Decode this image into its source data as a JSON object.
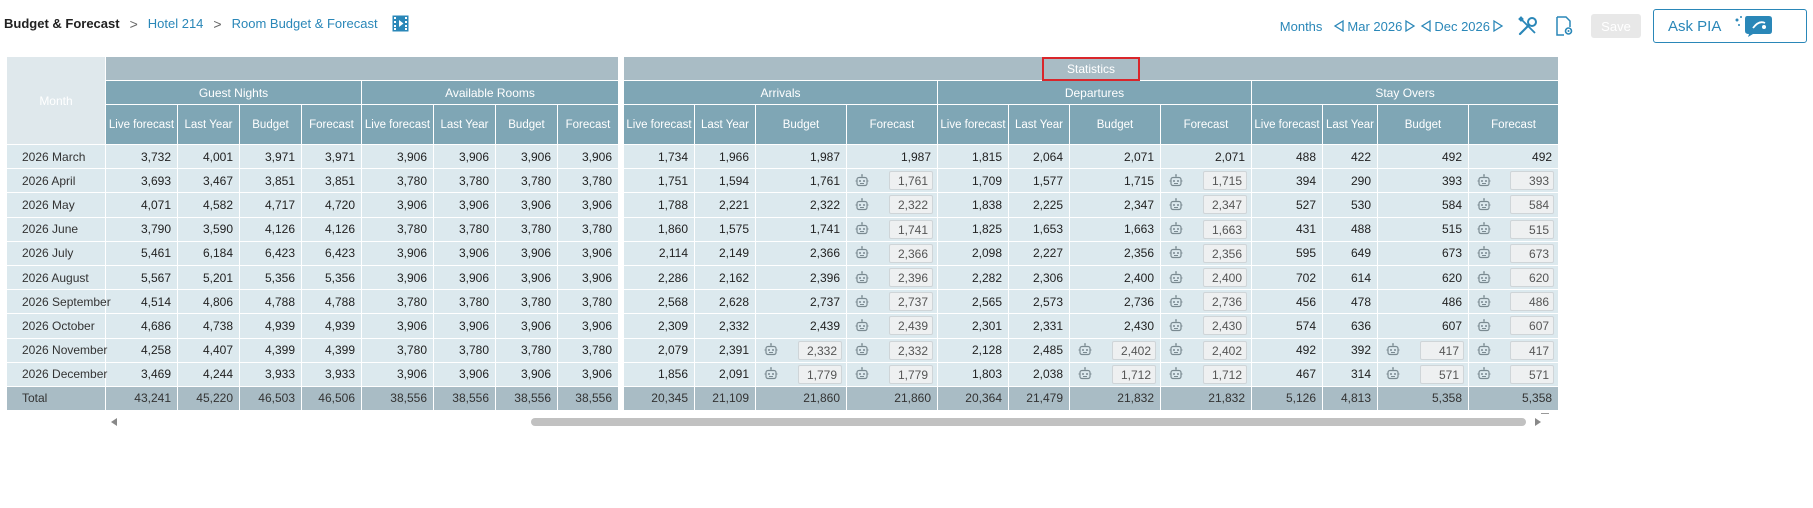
{
  "header": {
    "title": "Budget & Forecast",
    "breadcrumbs": [
      "Hotel 214",
      "Room Budget & Forecast"
    ],
    "view_mode": "Months",
    "period_start": "Mar 2026",
    "period_end": "Dec 2026",
    "save_label": "Save",
    "ask_label": "Ask PIA"
  },
  "table": {
    "statistics_label": "Statistics",
    "month_header": "Month",
    "groups": [
      "Guest Nights",
      "Available Rooms",
      "Arrivals",
      "Departures",
      "Stay Overs"
    ],
    "sub_headers": [
      "Live forecast",
      "Last Year",
      "Budget",
      "Forecast"
    ],
    "rows": [
      {
        "month": "2026 March",
        "gn": [
          "3,732",
          "4,001",
          "3,971",
          "3,971"
        ],
        "ar": [
          "3,906",
          "3,906",
          "3,906",
          "3,906"
        ],
        "arr": [
          "1,734",
          "1,966",
          "1,987",
          "1,987"
        ],
        "dep": [
          "1,815",
          "2,064",
          "2,071",
          "2,071"
        ],
        "so": [
          "488",
          "422",
          "492",
          "492"
        ]
      },
      {
        "month": "2026 April",
        "gn": [
          "3,693",
          "3,467",
          "3,851",
          "3,851"
        ],
        "ar": [
          "3,780",
          "3,780",
          "3,780",
          "3,780"
        ],
        "arr": [
          "1,751",
          "1,594",
          "1,761",
          "1,761"
        ],
        "dep": [
          "1,709",
          "1,577",
          "1,715",
          "1,715"
        ],
        "so": [
          "394",
          "290",
          "393",
          "393"
        ]
      },
      {
        "month": "2026 May",
        "gn": [
          "4,071",
          "4,582",
          "4,717",
          "4,720"
        ],
        "ar": [
          "3,906",
          "3,906",
          "3,906",
          "3,906"
        ],
        "arr": [
          "1,788",
          "2,221",
          "2,322",
          "2,322"
        ],
        "dep": [
          "1,838",
          "2,225",
          "2,347",
          "2,347"
        ],
        "so": [
          "527",
          "530",
          "584",
          "584"
        ]
      },
      {
        "month": "2026 June",
        "gn": [
          "3,790",
          "3,590",
          "4,126",
          "4,126"
        ],
        "ar": [
          "3,780",
          "3,780",
          "3,780",
          "3,780"
        ],
        "arr": [
          "1,860",
          "1,575",
          "1,741",
          "1,741"
        ],
        "dep": [
          "1,825",
          "1,653",
          "1,663",
          "1,663"
        ],
        "so": [
          "431",
          "488",
          "515",
          "515"
        ]
      },
      {
        "month": "2026 July",
        "gn": [
          "5,461",
          "6,184",
          "6,423",
          "6,423"
        ],
        "ar": [
          "3,906",
          "3,906",
          "3,906",
          "3,906"
        ],
        "arr": [
          "2,114",
          "2,149",
          "2,366",
          "2,366"
        ],
        "dep": [
          "2,098",
          "2,227",
          "2,356",
          "2,356"
        ],
        "so": [
          "595",
          "649",
          "673",
          "673"
        ]
      },
      {
        "month": "2026 August",
        "gn": [
          "5,567",
          "5,201",
          "5,356",
          "5,356"
        ],
        "ar": [
          "3,906",
          "3,906",
          "3,906",
          "3,906"
        ],
        "arr": [
          "2,286",
          "2,162",
          "2,396",
          "2,396"
        ],
        "dep": [
          "2,282",
          "2,306",
          "2,400",
          "2,400"
        ],
        "so": [
          "702",
          "614",
          "620",
          "620"
        ]
      },
      {
        "month": "2026 September",
        "gn": [
          "4,514",
          "4,806",
          "4,788",
          "4,788"
        ],
        "ar": [
          "3,780",
          "3,780",
          "3,780",
          "3,780"
        ],
        "arr": [
          "2,568",
          "2,628",
          "2,737",
          "2,737"
        ],
        "dep": [
          "2,565",
          "2,573",
          "2,736",
          "2,736"
        ],
        "so": [
          "456",
          "478",
          "486",
          "486"
        ]
      },
      {
        "month": "2026 October",
        "gn": [
          "4,686",
          "4,738",
          "4,939",
          "4,939"
        ],
        "ar": [
          "3,906",
          "3,906",
          "3,906",
          "3,906"
        ],
        "arr": [
          "2,309",
          "2,332",
          "2,439",
          "2,439"
        ],
        "dep": [
          "2,301",
          "2,331",
          "2,430",
          "2,430"
        ],
        "so": [
          "574",
          "636",
          "607",
          "607"
        ]
      },
      {
        "month": "2026 November",
        "gn": [
          "4,258",
          "4,407",
          "4,399",
          "4,399"
        ],
        "ar": [
          "3,780",
          "3,780",
          "3,780",
          "3,780"
        ],
        "arr": [
          "2,079",
          "2,391",
          "2,332",
          "2,332"
        ],
        "dep": [
          "2,128",
          "2,485",
          "2,402",
          "2,402"
        ],
        "so": [
          "492",
          "392",
          "417",
          "417"
        ]
      },
      {
        "month": "2026 December",
        "gn": [
          "3,469",
          "4,244",
          "3,933",
          "3,933"
        ],
        "ar": [
          "3,906",
          "3,906",
          "3,906",
          "3,906"
        ],
        "arr": [
          "1,856",
          "2,091",
          "1,779",
          "1,779"
        ],
        "dep": [
          "1,803",
          "2,038",
          "1,712",
          "1,712"
        ],
        "so": [
          "467",
          "314",
          "571",
          "571"
        ]
      }
    ],
    "total": {
      "label": "Total",
      "gn": [
        "43,241",
        "45,220",
        "46,503",
        "46,506"
      ],
      "ar": [
        "38,556",
        "38,556",
        "38,556",
        "38,556"
      ],
      "arr": [
        "20,345",
        "21,109",
        "21,860",
        "21,860"
      ],
      "dep": [
        "20,364",
        "21,479",
        "21,832",
        "21,832"
      ],
      "so": [
        "5,126",
        "4,813",
        "5,358",
        "5,358"
      ]
    }
  },
  "colors": {
    "accent": "#2a87b8",
    "header_teal": "#7fa6b5",
    "header_top": "#a9bcc5",
    "row_bg": "#dce9ee",
    "highlight": "#d9262b"
  },
  "icons": [
    "film-icon",
    "tools-icon",
    "settings-doc-icon",
    "pia-chat-icon",
    "robot-icon"
  ]
}
